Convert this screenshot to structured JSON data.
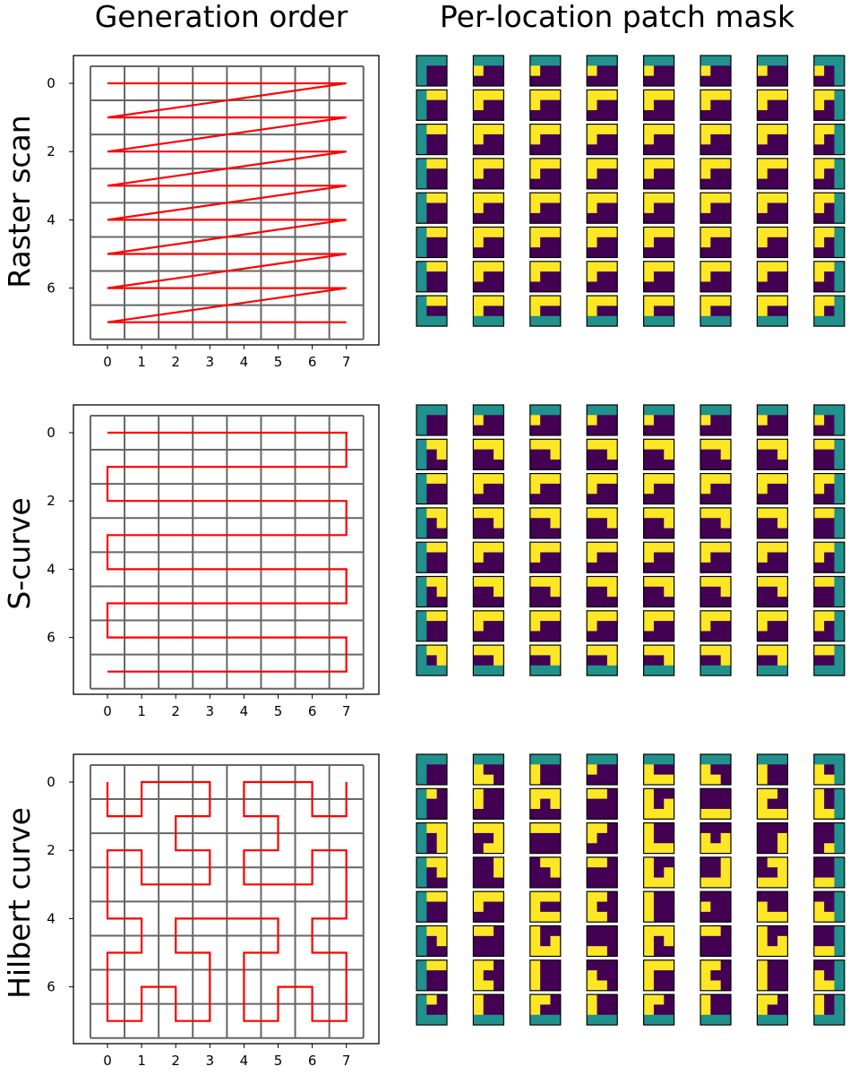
{
  "columns": {
    "left_title": "Generation order",
    "right_title": "Per-location patch mask"
  },
  "colors": {
    "path": "#ff0000",
    "grid": "#666666",
    "frame": "#000000",
    "future": "#440154",
    "context": "#fde725",
    "padding": "#21918c"
  },
  "panels": [
    {
      "id": "raster",
      "label": "Raster scan",
      "x_ticks": [
        "0",
        "1",
        "2",
        "3",
        "4",
        "5",
        "6",
        "7"
      ],
      "y_ticks": [
        "0",
        "2",
        "4",
        "6"
      ],
      "order": [
        [
          0,
          0
        ],
        [
          1,
          0
        ],
        [
          2,
          0
        ],
        [
          3,
          0
        ],
        [
          4,
          0
        ],
        [
          5,
          0
        ],
        [
          6,
          0
        ],
        [
          7,
          0
        ],
        [
          0,
          1
        ],
        [
          1,
          1
        ],
        [
          2,
          1
        ],
        [
          3,
          1
        ],
        [
          4,
          1
        ],
        [
          5,
          1
        ],
        [
          6,
          1
        ],
        [
          7,
          1
        ],
        [
          0,
          2
        ],
        [
          1,
          2
        ],
        [
          2,
          2
        ],
        [
          3,
          2
        ],
        [
          4,
          2
        ],
        [
          5,
          2
        ],
        [
          6,
          2
        ],
        [
          7,
          2
        ],
        [
          0,
          3
        ],
        [
          1,
          3
        ],
        [
          2,
          3
        ],
        [
          3,
          3
        ],
        [
          4,
          3
        ],
        [
          5,
          3
        ],
        [
          6,
          3
        ],
        [
          7,
          3
        ],
        [
          0,
          4
        ],
        [
          1,
          4
        ],
        [
          2,
          4
        ],
        [
          3,
          4
        ],
        [
          4,
          4
        ],
        [
          5,
          4
        ],
        [
          6,
          4
        ],
        [
          7,
          4
        ],
        [
          0,
          5
        ],
        [
          1,
          5
        ],
        [
          2,
          5
        ],
        [
          3,
          5
        ],
        [
          4,
          5
        ],
        [
          5,
          5
        ],
        [
          6,
          5
        ],
        [
          7,
          5
        ],
        [
          0,
          6
        ],
        [
          1,
          6
        ],
        [
          2,
          6
        ],
        [
          3,
          6
        ],
        [
          4,
          6
        ],
        [
          5,
          6
        ],
        [
          6,
          6
        ],
        [
          7,
          6
        ],
        [
          0,
          7
        ],
        [
          1,
          7
        ],
        [
          2,
          7
        ],
        [
          3,
          7
        ],
        [
          4,
          7
        ],
        [
          5,
          7
        ],
        [
          6,
          7
        ],
        [
          7,
          7
        ]
      ]
    },
    {
      "id": "s-curve",
      "label": "S-curve",
      "x_ticks": [
        "0",
        "1",
        "2",
        "3",
        "4",
        "5",
        "6",
        "7"
      ],
      "y_ticks": [
        "0",
        "2",
        "4",
        "6"
      ],
      "order": [
        [
          0,
          0
        ],
        [
          1,
          0
        ],
        [
          2,
          0
        ],
        [
          3,
          0
        ],
        [
          4,
          0
        ],
        [
          5,
          0
        ],
        [
          6,
          0
        ],
        [
          7,
          0
        ],
        [
          7,
          1
        ],
        [
          6,
          1
        ],
        [
          5,
          1
        ],
        [
          4,
          1
        ],
        [
          3,
          1
        ],
        [
          2,
          1
        ],
        [
          1,
          1
        ],
        [
          0,
          1
        ],
        [
          0,
          2
        ],
        [
          1,
          2
        ],
        [
          2,
          2
        ],
        [
          3,
          2
        ],
        [
          4,
          2
        ],
        [
          5,
          2
        ],
        [
          6,
          2
        ],
        [
          7,
          2
        ],
        [
          7,
          3
        ],
        [
          6,
          3
        ],
        [
          5,
          3
        ],
        [
          4,
          3
        ],
        [
          3,
          3
        ],
        [
          2,
          3
        ],
        [
          1,
          3
        ],
        [
          0,
          3
        ],
        [
          0,
          4
        ],
        [
          1,
          4
        ],
        [
          2,
          4
        ],
        [
          3,
          4
        ],
        [
          4,
          4
        ],
        [
          5,
          4
        ],
        [
          6,
          4
        ],
        [
          7,
          4
        ],
        [
          7,
          5
        ],
        [
          6,
          5
        ],
        [
          5,
          5
        ],
        [
          4,
          5
        ],
        [
          3,
          5
        ],
        [
          2,
          5
        ],
        [
          1,
          5
        ],
        [
          0,
          5
        ],
        [
          0,
          6
        ],
        [
          1,
          6
        ],
        [
          2,
          6
        ],
        [
          3,
          6
        ],
        [
          4,
          6
        ],
        [
          5,
          6
        ],
        [
          6,
          6
        ],
        [
          7,
          6
        ],
        [
          7,
          7
        ],
        [
          6,
          7
        ],
        [
          5,
          7
        ],
        [
          4,
          7
        ],
        [
          3,
          7
        ],
        [
          2,
          7
        ],
        [
          1,
          7
        ],
        [
          0,
          7
        ]
      ]
    },
    {
      "id": "hilbert",
      "label": "Hilbert curve",
      "x_ticks": [
        "0",
        "1",
        "2",
        "3",
        "4",
        "5",
        "6",
        "7"
      ],
      "y_ticks": [
        "0",
        "2",
        "4",
        "6"
      ],
      "order": [
        [
          0,
          0
        ],
        [
          0,
          1
        ],
        [
          1,
          1
        ],
        [
          1,
          0
        ],
        [
          2,
          0
        ],
        [
          3,
          0
        ],
        [
          3,
          1
        ],
        [
          2,
          1
        ],
        [
          2,
          2
        ],
        [
          3,
          2
        ],
        [
          3,
          3
        ],
        [
          2,
          3
        ],
        [
          1,
          3
        ],
        [
          1,
          2
        ],
        [
          0,
          2
        ],
        [
          0,
          3
        ],
        [
          0,
          4
        ],
        [
          1,
          4
        ],
        [
          1,
          5
        ],
        [
          0,
          5
        ],
        [
          0,
          6
        ],
        [
          0,
          7
        ],
        [
          1,
          7
        ],
        [
          1,
          6
        ],
        [
          2,
          6
        ],
        [
          2,
          7
        ],
        [
          3,
          7
        ],
        [
          3,
          6
        ],
        [
          3,
          5
        ],
        [
          2,
          5
        ],
        [
          2,
          4
        ],
        [
          3,
          4
        ],
        [
          4,
          4
        ],
        [
          5,
          4
        ],
        [
          5,
          5
        ],
        [
          4,
          5
        ],
        [
          4,
          6
        ],
        [
          4,
          7
        ],
        [
          5,
          7
        ],
        [
          5,
          6
        ],
        [
          6,
          6
        ],
        [
          6,
          7
        ],
        [
          7,
          7
        ],
        [
          7,
          6
        ],
        [
          7,
          5
        ],
        [
          6,
          5
        ],
        [
          6,
          4
        ],
        [
          7,
          4
        ],
        [
          7,
          3
        ],
        [
          7,
          2
        ],
        [
          6,
          2
        ],
        [
          6,
          3
        ],
        [
          5,
          3
        ],
        [
          4,
          3
        ],
        [
          4,
          2
        ],
        [
          5,
          2
        ],
        [
          5,
          1
        ],
        [
          4,
          1
        ],
        [
          4,
          0
        ],
        [
          5,
          0
        ],
        [
          6,
          0
        ],
        [
          6,
          1
        ],
        [
          7,
          1
        ],
        [
          7,
          0
        ]
      ]
    }
  ]
}
